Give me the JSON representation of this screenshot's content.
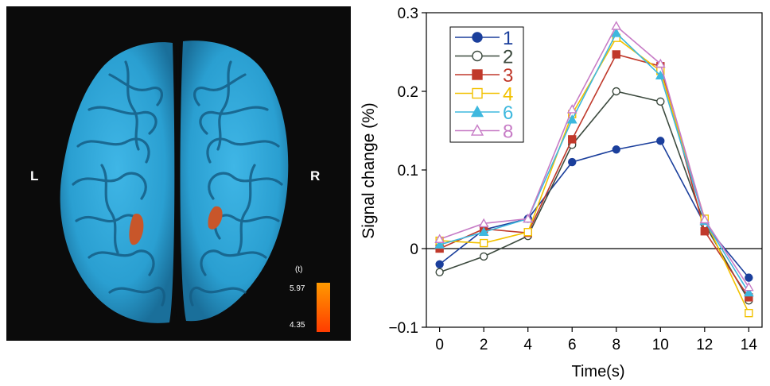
{
  "brain": {
    "left_label": "L",
    "right_label": "R",
    "colorbar": {
      "unit": "(t)",
      "max_label": "5.97",
      "min_label": "4.35",
      "color_top": "#ff9a00",
      "color_bottom": "#ff3c00"
    },
    "brain_color": "#2aa3d4",
    "activation_color": "#c8562a"
  },
  "chart_data": {
    "type": "line",
    "title": "",
    "xlabel": "Time(s)",
    "ylabel": "Signal change (%)",
    "xlim": [
      -0.6,
      14.6
    ],
    "ylim": [
      -0.1,
      0.3
    ],
    "x_ticks": [
      0,
      2,
      4,
      6,
      8,
      10,
      12,
      14
    ],
    "y_ticks": [
      -0.1,
      0,
      0.1,
      0.2,
      0.3
    ],
    "y_tick_labels": [
      "−0.1",
      "0",
      "0.1",
      "0.2",
      "0.3"
    ],
    "zero_line": true,
    "grid": false,
    "legend_position": "top-left",
    "x": [
      0,
      2,
      4,
      6,
      8,
      10,
      12,
      14
    ],
    "series": [
      {
        "name": "1",
        "color": "#1b3f9c",
        "marker": "filled-circle",
        "values": [
          -0.02,
          0.024,
          0.038,
          0.11,
          0.126,
          0.137,
          0.031,
          -0.037
        ]
      },
      {
        "name": "2",
        "color": "#3c4a3e",
        "marker": "open-circle",
        "values": [
          -0.03,
          -0.01,
          0.016,
          0.132,
          0.2,
          0.187,
          0.031,
          -0.066
        ]
      },
      {
        "name": "3",
        "color": "#c0392b",
        "marker": "filled-square",
        "values": [
          0.0,
          0.025,
          0.02,
          0.139,
          0.247,
          0.232,
          0.022,
          -0.062
        ]
      },
      {
        "name": "4",
        "color": "#f2c100",
        "marker": "open-square",
        "values": [
          0.01,
          0.007,
          0.021,
          0.171,
          0.268,
          0.226,
          0.038,
          -0.082
        ]
      },
      {
        "name": "6",
        "color": "#3eb8de",
        "marker": "filled-triangle",
        "values": [
          0.005,
          0.021,
          0.038,
          0.164,
          0.274,
          0.22,
          0.035,
          -0.056
        ]
      },
      {
        "name": "8",
        "color": "#c77cc6",
        "marker": "open-triangle",
        "values": [
          0.012,
          0.032,
          0.038,
          0.177,
          0.283,
          0.235,
          0.037,
          -0.049
        ]
      }
    ]
  }
}
